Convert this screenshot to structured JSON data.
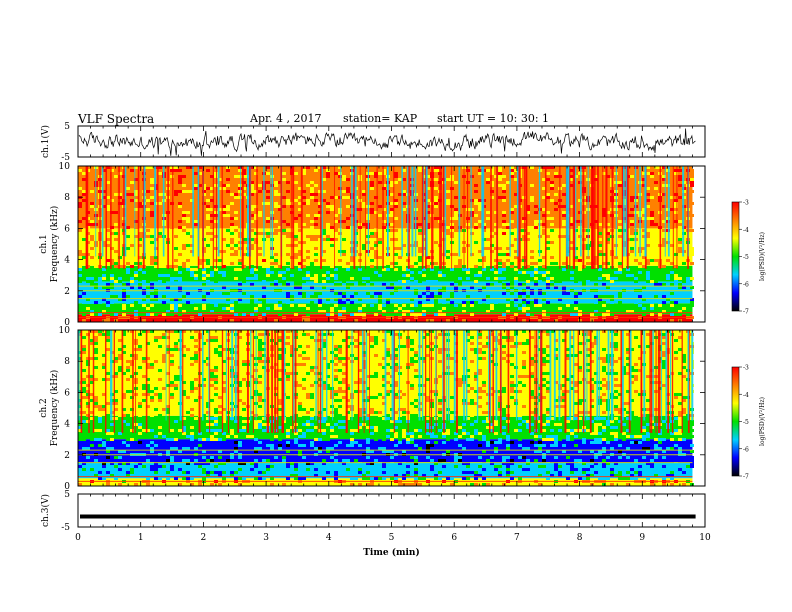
{
  "header": {
    "title": "VLF Spectra",
    "date": "Apr. 4 , 2017",
    "station": "station= KAP",
    "start_ut": "start UT = 10: 30: 1"
  },
  "colorbar": {
    "label": "log(PSD)(V²/Hz)",
    "ticks": [
      "-3",
      "-4",
      "-5",
      "-6",
      "-7"
    ],
    "colors": [
      "#ff0000",
      "#ff8000",
      "#ffff00",
      "#00e000",
      "#00d0ff",
      "#0000ff",
      "#000000"
    ]
  },
  "chart_data": [
    {
      "type": "line",
      "panel": "ch1-waveform",
      "ylabel": "ch.1(V)",
      "yticks": [
        "5",
        "-5"
      ],
      "ylim": [
        -5,
        5
      ],
      "xlim": [
        0,
        10
      ],
      "description_values": "noisy waveform fluctuating mostly between -3 and +3 V"
    },
    {
      "type": "heatmap",
      "panel": "ch1-spectrogram",
      "ylabel": "ch.1 Frequency (kHz)",
      "yticks": [
        "0",
        "2",
        "4",
        "6",
        "8",
        "10"
      ],
      "ylim": [
        0,
        10
      ],
      "xlim": [
        0,
        10
      ],
      "x_extent_min": 9.8,
      "bands": [
        {
          "from": 0,
          "to": 0.5,
          "level": -3.2
        },
        {
          "from": 0.5,
          "to": 1.2,
          "level": -4.8
        },
        {
          "from": 1.2,
          "to": 2.6,
          "level": -5.6
        },
        {
          "from": 2.6,
          "to": 3.6,
          "level": -5.2
        },
        {
          "from": 3.6,
          "to": 6,
          "level": -4.1
        },
        {
          "from": 6,
          "to": 10,
          "level": -3.7
        }
      ]
    },
    {
      "type": "heatmap",
      "panel": "ch2-spectrogram",
      "ylabel": "ch.2 Frequency (kHz)",
      "yticks": [
        "0",
        "2",
        "4",
        "6",
        "8",
        "10"
      ],
      "ylim": [
        0,
        10
      ],
      "xlim": [
        0,
        10
      ],
      "x_extent_min": 9.8,
      "bands": [
        {
          "from": 0,
          "to": 0.5,
          "level": -4.0
        },
        {
          "from": 0.5,
          "to": 1.5,
          "level": -5.7
        },
        {
          "from": 1.5,
          "to": 3.0,
          "level": -6.0
        },
        {
          "from": 3.0,
          "to": 4.5,
          "level": -5.0
        },
        {
          "from": 4.5,
          "to": 10,
          "level": -4.3
        }
      ]
    },
    {
      "type": "line",
      "panel": "ch3-waveform",
      "ylabel": "ch.3(V)",
      "yticks": [
        "5",
        "-5"
      ],
      "ylim": [
        -5,
        5
      ],
      "xlim": [
        0,
        10
      ],
      "constant_value": -1.8
    }
  ],
  "xaxis": {
    "label": "Time (min)",
    "ticks": [
      "0",
      "1",
      "2",
      "3",
      "4",
      "5",
      "6",
      "7",
      "8",
      "9",
      "10"
    ]
  }
}
